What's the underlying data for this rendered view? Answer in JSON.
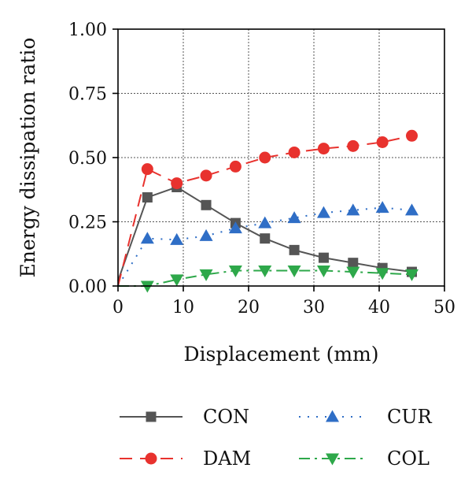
{
  "chart_data": {
    "type": "line",
    "title": "",
    "xlabel": "Displacement (mm)",
    "ylabel": "Energy dissipation ratio",
    "xlim": [
      0,
      50
    ],
    "ylim": [
      0,
      1.0
    ],
    "xticks": [
      0,
      10,
      20,
      30,
      40,
      50
    ],
    "yticks": [
      0.0,
      0.25,
      0.5,
      0.75,
      1.0
    ],
    "xtick_labels": [
      "0",
      "10",
      "20",
      "30",
      "40",
      "50"
    ],
    "ytick_labels": [
      "0.00",
      "0.25",
      "0.50",
      "0.75",
      "1.00"
    ],
    "grid": true,
    "legend_position": "bottom",
    "series": [
      {
        "name": "CON",
        "color": "#555555",
        "marker": "square",
        "line_style": "solid",
        "x": [
          0,
          4.5,
          9,
          13.5,
          18,
          22.5,
          27,
          31.5,
          36,
          40.5,
          45
        ],
        "y": [
          0.02,
          0.345,
          0.385,
          0.315,
          0.245,
          0.185,
          0.14,
          0.11,
          0.09,
          0.07,
          0.055
        ]
      },
      {
        "name": "DAM",
        "color": "#e8322e",
        "marker": "circle",
        "line_style": "dashed",
        "x": [
          0,
          4.5,
          9,
          13.5,
          18,
          22.5,
          27,
          31.5,
          36,
          40.5,
          45
        ],
        "y": [
          0.0,
          0.455,
          0.4,
          0.43,
          0.465,
          0.5,
          0.52,
          0.535,
          0.545,
          0.56,
          0.585
        ]
      },
      {
        "name": "CUR",
        "color": "#2f6ec6",
        "marker": "triangle-up",
        "line_style": "dotted",
        "x": [
          0,
          4.5,
          9,
          13.5,
          18,
          22.5,
          27,
          31.5,
          36,
          40.5,
          45
        ],
        "y": [
          0.0,
          0.185,
          0.18,
          0.195,
          0.225,
          0.245,
          0.265,
          0.285,
          0.295,
          0.305,
          0.295
        ]
      },
      {
        "name": "COL",
        "color": "#2ea84a",
        "marker": "triangle-down",
        "line_style": "dashdot",
        "x": [
          0,
          4.5,
          9,
          13.5,
          18,
          22.5,
          27,
          31.5,
          36,
          40.5,
          45
        ],
        "y": [
          0.0,
          0.0,
          0.025,
          0.045,
          0.06,
          0.06,
          0.06,
          0.06,
          0.055,
          0.05,
          0.045
        ]
      }
    ]
  }
}
